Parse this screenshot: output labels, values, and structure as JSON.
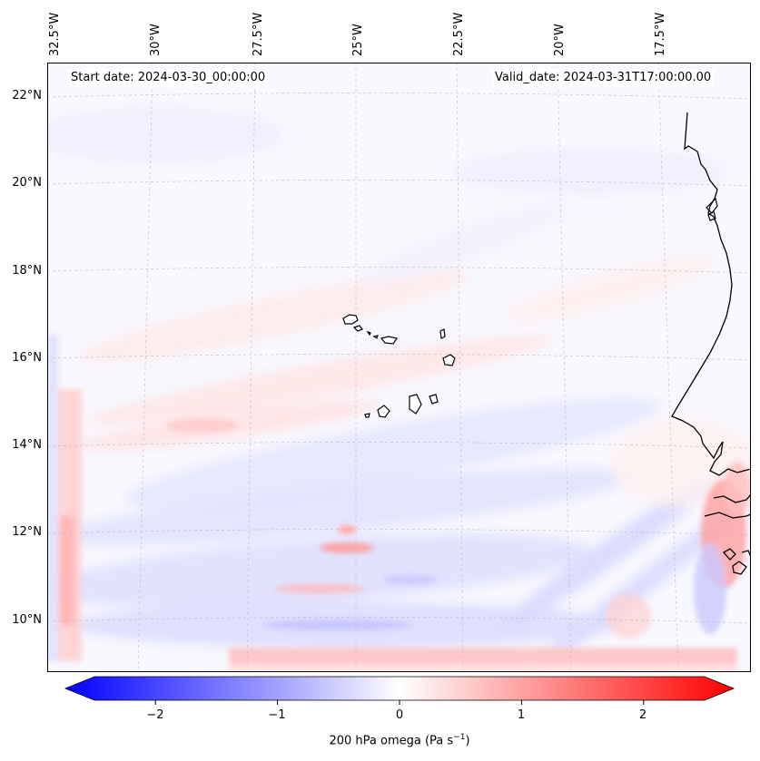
{
  "map": {
    "lon_labels": [
      "32.5°W",
      "30°W",
      "27.5°W",
      "25°W",
      "22.5°W",
      "20°W",
      "17.5°W"
    ],
    "lat_labels": [
      "22°N",
      "20°N",
      "18°N",
      "16°N",
      "14°N",
      "12°N",
      "10°N"
    ],
    "start_date": "Start date: 2024-03-30_00:00:00",
    "valid_date": "Valid_date: 2024-03-31T17:00:00.00",
    "field_colors": {
      "negative": "#0000ff",
      "zero": "#ffffff",
      "positive": "#ff0000",
      "background": "#f7f7ff"
    }
  },
  "colorbar": {
    "ticks": [
      "−2",
      "−1",
      "0",
      "1",
      "2"
    ],
    "tick_values": [
      -2,
      -1,
      0,
      1,
      2
    ],
    "range": [
      -2.75,
      2.75
    ],
    "label_main": "200 hPa omega (Pa s",
    "label_sup": "−1",
    "label_end": ")"
  }
}
